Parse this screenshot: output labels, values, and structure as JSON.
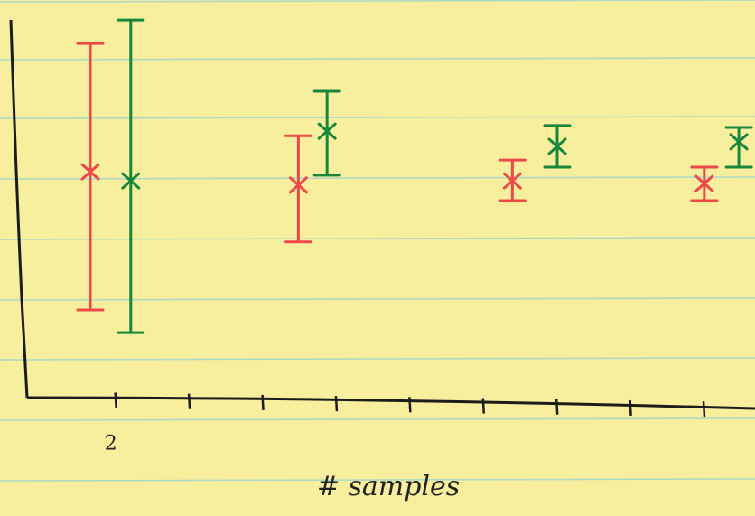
{
  "chart_data": {
    "type": "errorbar",
    "xlabel": "# samples",
    "xlim": [
      0.8,
      10.7
    ],
    "ylim": [
      0,
      10
    ],
    "xticks": [
      {
        "value": 2,
        "label": "2"
      },
      3,
      4,
      5,
      6,
      7,
      8,
      9,
      10
    ],
    "series": [
      {
        "color": "#ef4848",
        "x": [
          1.66,
          4.49,
          7.4,
          10.01
        ],
        "values": [
          5.95,
          5.6,
          5.71,
          5.64
        ],
        "lower": [
          2.31,
          4.1,
          5.19,
          5.19
        ],
        "upper": [
          9.33,
          6.9,
          6.26,
          6.07
        ]
      },
      {
        "color": "#17873a",
        "x": [
          2.21,
          4.88,
          8.01,
          10.48
        ],
        "values": [
          5.71,
          7.02,
          6.62,
          6.74
        ],
        "lower": [
          1.71,
          5.86,
          6.07,
          6.07
        ],
        "upper": [
          9.95,
          8.07,
          7.17,
          7.12
        ]
      }
    ]
  }
}
